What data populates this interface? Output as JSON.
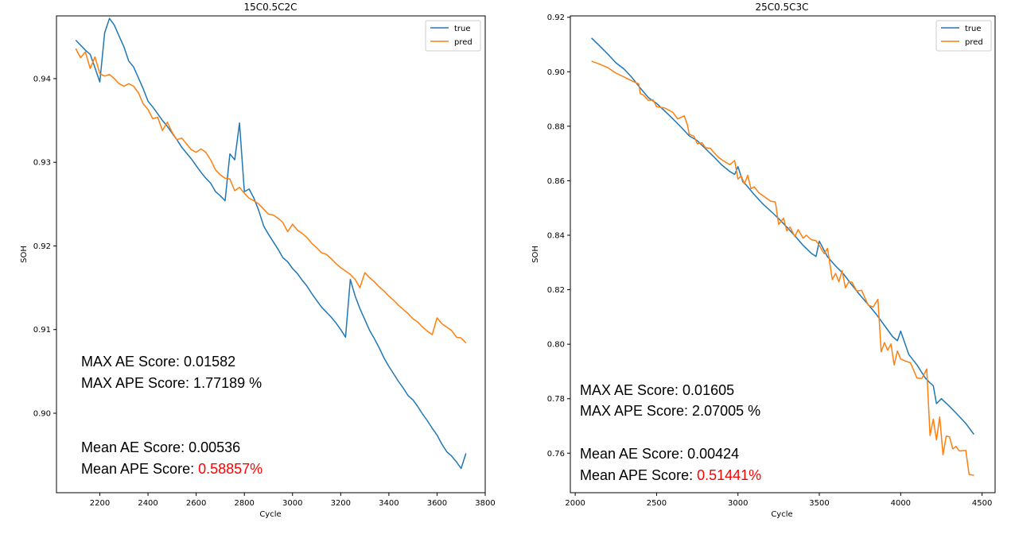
{
  "chart_data": [
    {
      "type": "line",
      "title": "15C0.5C2C",
      "xlabel": "Cycle",
      "ylabel": "SOH",
      "xlim": [
        2020,
        3800
      ],
      "ylim": [
        0.8905,
        0.9475
      ],
      "xticks": [
        2200,
        2400,
        2600,
        2800,
        3000,
        3200,
        3400,
        3600,
        3800
      ],
      "yticks": [
        0.9,
        0.91,
        0.92,
        0.93,
        0.94
      ],
      "ytick_labels": [
        "0.90",
        "0.91",
        "0.92",
        "0.93",
        "0.94"
      ],
      "grid": false,
      "legend_position": "top-right",
      "series": [
        {
          "name": "true",
          "color": "#1f77b4",
          "x": [
            2100,
            2120,
            2140,
            2160,
            2180,
            2200,
            2220,
            2240,
            2260,
            2280,
            2300,
            2320,
            2340,
            2360,
            2380,
            2400,
            2420,
            2440,
            2460,
            2480,
            2500,
            2520,
            2540,
            2560,
            2580,
            2600,
            2620,
            2640,
            2660,
            2680,
            2700,
            2720,
            2740,
            2760,
            2780,
            2800,
            2820,
            2840,
            2860,
            2880,
            2900,
            2920,
            2940,
            2960,
            2980,
            3000,
            3020,
            3040,
            3060,
            3080,
            3100,
            3120,
            3140,
            3160,
            3180,
            3200,
            3220,
            3240,
            3260,
            3280,
            3300,
            3320,
            3340,
            3360,
            3380,
            3400,
            3420,
            3440,
            3460,
            3480,
            3500,
            3520,
            3540,
            3560,
            3580,
            3600,
            3620,
            3640,
            3660,
            3680,
            3700,
            3720
          ],
          "y": [
            0.9446,
            0.944,
            0.9434,
            0.9429,
            0.9413,
            0.9396,
            0.9455,
            0.9472,
            0.9464,
            0.9451,
            0.9438,
            0.9421,
            0.9414,
            0.9401,
            0.9388,
            0.9373,
            0.9366,
            0.9358,
            0.935,
            0.9343,
            0.9335,
            0.9327,
            0.9318,
            0.9311,
            0.9304,
            0.9296,
            0.9288,
            0.9281,
            0.9275,
            0.9265,
            0.926,
            0.9254,
            0.931,
            0.9303,
            0.9347,
            0.9265,
            0.9268,
            0.9257,
            0.9242,
            0.9224,
            0.9214,
            0.9205,
            0.9196,
            0.9186,
            0.9181,
            0.9173,
            0.9167,
            0.9159,
            0.9152,
            0.9143,
            0.9135,
            0.9127,
            0.9121,
            0.9115,
            0.9108,
            0.91,
            0.9091,
            0.916,
            0.914,
            0.9125,
            0.9112,
            0.9099,
            0.9089,
            0.9078,
            0.9066,
            0.9056,
            0.9047,
            0.9038,
            0.903,
            0.9021,
            0.9016,
            0.9008,
            0.8999,
            0.8991,
            0.8982,
            0.8974,
            0.8963,
            0.8954,
            0.8949,
            0.8942,
            0.8934,
            0.8952
          ]
        },
        {
          "name": "pred",
          "color": "#ff7f0e",
          "x": [
            2100,
            2120,
            2140,
            2160,
            2180,
            2200,
            2220,
            2240,
            2260,
            2280,
            2300,
            2320,
            2340,
            2360,
            2380,
            2400,
            2420,
            2440,
            2460,
            2480,
            2500,
            2520,
            2540,
            2560,
            2580,
            2600,
            2620,
            2640,
            2660,
            2680,
            2700,
            2720,
            2740,
            2760,
            2780,
            2800,
            2820,
            2840,
            2860,
            2880,
            2900,
            2920,
            2940,
            2960,
            2980,
            3000,
            3020,
            3040,
            3060,
            3080,
            3100,
            3120,
            3140,
            3160,
            3180,
            3200,
            3220,
            3240,
            3260,
            3280,
            3300,
            3320,
            3340,
            3360,
            3380,
            3400,
            3420,
            3440,
            3460,
            3480,
            3500,
            3520,
            3540,
            3560,
            3580,
            3600,
            3620,
            3640,
            3660,
            3680,
            3700,
            3720
          ],
          "y": [
            0.9436,
            0.9425,
            0.9432,
            0.9412,
            0.9426,
            0.9406,
            0.9403,
            0.9405,
            0.94,
            0.9394,
            0.9391,
            0.9394,
            0.9391,
            0.9383,
            0.937,
            0.9363,
            0.9352,
            0.9354,
            0.9338,
            0.9348,
            0.9336,
            0.9327,
            0.9329,
            0.9322,
            0.9315,
            0.9312,
            0.9316,
            0.9312,
            0.9303,
            0.9291,
            0.9285,
            0.9281,
            0.928,
            0.9266,
            0.927,
            0.9263,
            0.9257,
            0.9254,
            0.925,
            0.9244,
            0.9238,
            0.9237,
            0.9233,
            0.9228,
            0.9217,
            0.9226,
            0.9219,
            0.9215,
            0.921,
            0.9203,
            0.9198,
            0.9192,
            0.919,
            0.9185,
            0.9179,
            0.9174,
            0.917,
            0.9166,
            0.916,
            0.915,
            0.9168,
            0.9162,
            0.9157,
            0.9151,
            0.9146,
            0.914,
            0.9135,
            0.9129,
            0.9124,
            0.9119,
            0.9113,
            0.9109,
            0.9103,
            0.9098,
            0.9094,
            0.9114,
            0.9107,
            0.9103,
            0.9099,
            0.9091,
            0.909,
            0.9084
          ]
        }
      ],
      "annotations": [
        "MAX AE Score: 0.01582",
        "MAX APE Score: 1.77189 %",
        "Mean AE Score: 0.00536",
        "Mean APE Score: ",
        "0.58857%"
      ]
    },
    {
      "type": "line",
      "title": "25C0.5C3C",
      "xlabel": "Cycle",
      "ylabel": "SOH",
      "xlim": [
        1970,
        4580
      ],
      "ylim": [
        0.7455,
        0.9205
      ],
      "xticks": [
        2000,
        2500,
        3000,
        3500,
        4000,
        4500
      ],
      "yticks": [
        0.76,
        0.78,
        0.8,
        0.82,
        0.84,
        0.86,
        0.88,
        0.9,
        0.92
      ],
      "ytick_labels": [
        "0.76",
        "0.78",
        "0.80",
        "0.82",
        "0.84",
        "0.86",
        "0.88",
        "0.90",
        "0.92"
      ],
      "grid": false,
      "legend_position": "top-right",
      "series": [
        {
          "name": "true",
          "color": "#1f77b4",
          "x": [
            2100,
            2150,
            2200,
            2250,
            2300,
            2350,
            2400,
            2450,
            2500,
            2550,
            2600,
            2650,
            2700,
            2750,
            2800,
            2850,
            2900,
            2950,
            2980,
            3000,
            3030,
            3050,
            3100,
            3150,
            3200,
            3250,
            3300,
            3350,
            3400,
            3450,
            3480,
            3500,
            3550,
            3600,
            3650,
            3700,
            3750,
            3800,
            3850,
            3900,
            3950,
            3980,
            4000,
            4050,
            4100,
            4150,
            4180,
            4200,
            4220,
            4250,
            4300,
            4350,
            4400,
            4450
          ],
          "y": [
            0.9124,
            0.9095,
            0.9065,
            0.9033,
            0.901,
            0.8978,
            0.894,
            0.8905,
            0.8884,
            0.8856,
            0.8827,
            0.8797,
            0.8765,
            0.8747,
            0.8718,
            0.8689,
            0.8658,
            0.8634,
            0.8623,
            0.8652,
            0.8596,
            0.8585,
            0.8549,
            0.8517,
            0.8489,
            0.8461,
            0.843,
            0.8398,
            0.8363,
            0.8334,
            0.8322,
            0.8378,
            0.8321,
            0.8287,
            0.8257,
            0.8217,
            0.818,
            0.8146,
            0.811,
            0.8069,
            0.8028,
            0.8013,
            0.8048,
            0.7962,
            0.7924,
            0.7877,
            0.7858,
            0.7848,
            0.7782,
            0.78,
            0.7772,
            0.7741,
            0.7709,
            0.7669
          ]
        },
        {
          "name": "pred",
          "color": "#ff7f0e",
          "x": [
            2100,
            2150,
            2200,
            2250,
            2300,
            2350,
            2390,
            2400,
            2420,
            2450,
            2480,
            2500,
            2550,
            2600,
            2630,
            2670,
            2690,
            2700,
            2730,
            2750,
            2780,
            2800,
            2830,
            2850,
            2880,
            2900,
            2950,
            2980,
            3000,
            3020,
            3040,
            3060,
            3080,
            3100,
            3130,
            3150,
            3200,
            3230,
            3250,
            3280,
            3300,
            3320,
            3350,
            3370,
            3400,
            3420,
            3450,
            3480,
            3500,
            3530,
            3550,
            3580,
            3600,
            3620,
            3640,
            3660,
            3680,
            3700,
            3730,
            3760,
            3800,
            3830,
            3860,
            3880,
            3900,
            3920,
            3940,
            3960,
            3980,
            4000,
            4030,
            4060,
            4100,
            4130,
            4160,
            4180,
            4200,
            4220,
            4240,
            4260,
            4280,
            4300,
            4320,
            4340,
            4360,
            4400,
            4420,
            4450
          ],
          "y": [
            0.9039,
            0.9028,
            0.9015,
            0.8995,
            0.8981,
            0.8966,
            0.8956,
            0.892,
            0.8914,
            0.8895,
            0.8896,
            0.8872,
            0.8867,
            0.8851,
            0.8827,
            0.8838,
            0.8804,
            0.8771,
            0.8763,
            0.8736,
            0.8739,
            0.8721,
            0.8719,
            0.8705,
            0.8686,
            0.8677,
            0.8659,
            0.8674,
            0.8606,
            0.8618,
            0.8588,
            0.862,
            0.8571,
            0.8578,
            0.8555,
            0.8547,
            0.8525,
            0.8522,
            0.844,
            0.8463,
            0.8416,
            0.843,
            0.8395,
            0.8421,
            0.8389,
            0.84,
            0.8384,
            0.838,
            0.8362,
            0.8332,
            0.8352,
            0.8237,
            0.826,
            0.8229,
            0.827,
            0.8207,
            0.8228,
            0.8228,
            0.8195,
            0.8198,
            0.8144,
            0.8136,
            0.8165,
            0.7972,
            0.8006,
            0.7978,
            0.8001,
            0.7924,
            0.7975,
            0.7946,
            0.7938,
            0.7932,
            0.7876,
            0.7874,
            0.7909,
            0.7665,
            0.7725,
            0.7649,
            0.7733,
            0.7594,
            0.7663,
            0.766,
            0.7616,
            0.7625,
            0.7608,
            0.761,
            0.7522,
            0.7519
          ]
        }
      ],
      "annotations": [
        "MAX AE Score: 0.01605",
        "MAX APE Score: 2.07005 %",
        "Mean AE Score: 0.00424",
        "Mean APE Score: ",
        "0.51441%"
      ]
    }
  ],
  "colors": {
    "true": "#1f77b4",
    "pred": "#ff7f0e",
    "highlight": "#ff0000"
  }
}
